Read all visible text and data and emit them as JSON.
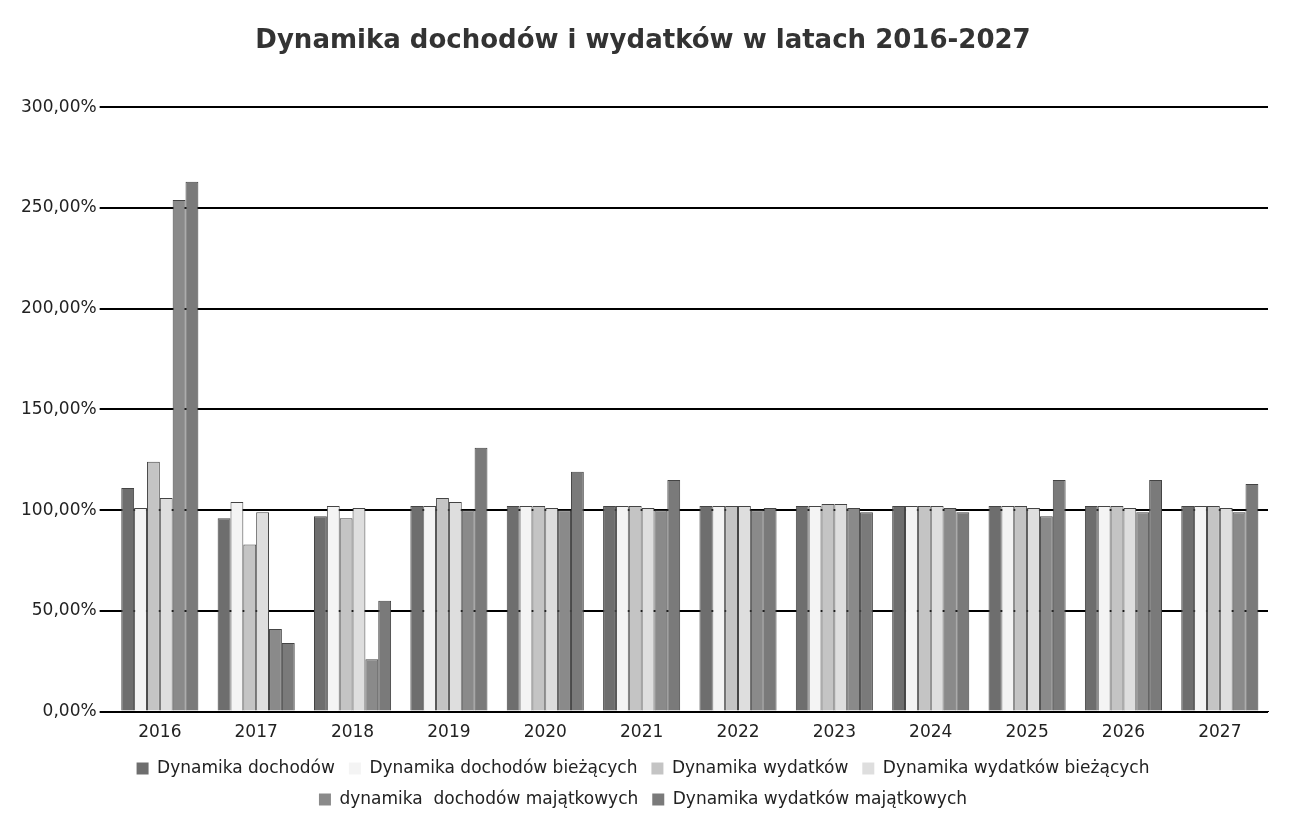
{
  "chart_data": {
    "type": "bar",
    "title": "Dynamika dochodów i wydatków w latach 2016-2027",
    "categories": [
      "2016",
      "2017",
      "2018",
      "2019",
      "2020",
      "2021",
      "2022",
      "2023",
      "2024",
      "2025",
      "2026",
      "2027"
    ],
    "series": [
      {
        "name": "Dynamika dochodów",
        "color": "#6e6e6e",
        "values": [
          111,
          96,
          97,
          102,
          102,
          102,
          102,
          102,
          102,
          102,
          102,
          102
        ]
      },
      {
        "name": "Dynamika dochodów bieżących",
        "color": "#f4f4f4",
        "values": [
          101,
          104,
          102,
          102,
          102,
          102,
          102,
          102,
          102,
          102,
          102,
          102
        ]
      },
      {
        "name": "Dynamika wydatków",
        "color": "#c4c4c4",
        "values": [
          124,
          83,
          96,
          106,
          102,
          102,
          102,
          103,
          102,
          102,
          102,
          102
        ]
      },
      {
        "name": "Dynamika wydatków bieżących",
        "color": "#dedede",
        "values": [
          106,
          99,
          101,
          104,
          101,
          101,
          102,
          103,
          102,
          101,
          101,
          101
        ]
      },
      {
        "name": "dynamika  dochodów majątkowych",
        "color": "#8a8a8a",
        "values": [
          254,
          41,
          26,
          100,
          100,
          100,
          100,
          101,
          101,
          97,
          99,
          99
        ]
      },
      {
        "name": "Dynamika wydatków majątkowych",
        "color": "#7a7a7a",
        "values": [
          263,
          34,
          55,
          131,
          119,
          115,
          101,
          99,
          99,
          115,
          115,
          113
        ]
      }
    ],
    "ylim": [
      0,
      300
    ],
    "yticks": [
      {
        "value": 0,
        "label": "0,00%"
      },
      {
        "value": 50,
        "label": "50,00%"
      },
      {
        "value": 100,
        "label": "100,00%"
      },
      {
        "value": 150,
        "label": "150,00%"
      },
      {
        "value": 200,
        "label": "200,00%"
      },
      {
        "value": 250,
        "label": "250,00%"
      },
      {
        "value": 300,
        "label": "300,00%"
      }
    ],
    "grid": "y",
    "legend": "bottom"
  }
}
